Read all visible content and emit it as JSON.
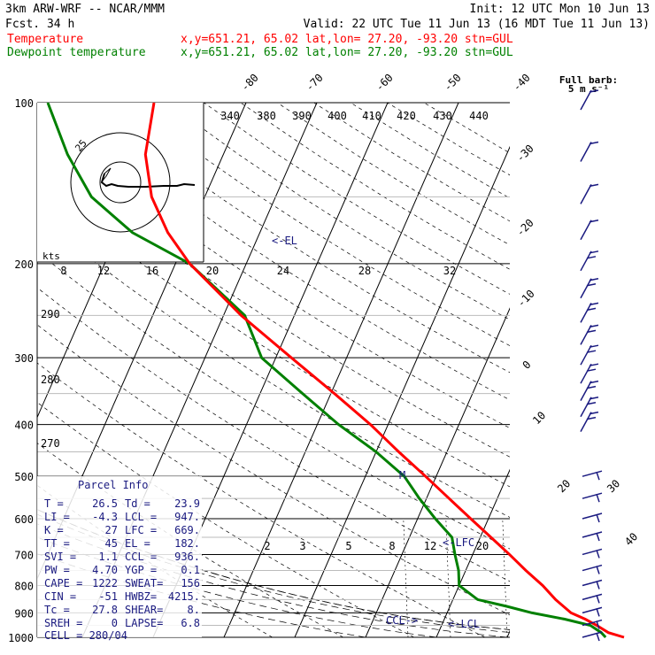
{
  "header": {
    "model": "3km ARW-WRF -- NCAR/MMM",
    "init": "Init: 12 UTC Mon 10 Jun 13",
    "fcst": "Fcst.    34 h",
    "valid": "Valid: 22 UTC Tue 11 Jun 13 (16 MDT Tue 11 Jun 13)",
    "temp_label": "Temperature",
    "dew_label": "Dewpoint temperature",
    "temp_loc": "x,y=651.21, 65.02   lat,lon= 27.20, -93.20  stn=GUL",
    "dew_loc": "x,y=651.21, 65.02   lat,lon= 27.20, -93.20  stn=GUL",
    "full_barb": "Full barb:",
    "full_barb_speed": "5 m s⁻¹",
    "temp_color": "#ff0000",
    "dew_color": "#008000",
    "wind_color": "#1a1a80"
  },
  "chart_data": {
    "type": "line",
    "description_axes": "skew-T log-p",
    "pressure_levels": [
      100,
      200,
      300,
      400,
      500,
      600,
      700,
      800,
      900,
      1000
    ],
    "x_ticks_temp": [
      "-80",
      "-70",
      "-60",
      "-50",
      "-40",
      "-30",
      "-20",
      "-10",
      "0",
      "10",
      "20",
      "30",
      "40"
    ],
    "theta_labels": [
      "340",
      "380",
      "390",
      "400",
      "410",
      "420",
      "430",
      "440"
    ],
    "theta_side_labels": [
      "290",
      "280",
      "270"
    ],
    "mixing_ratio_labels": [
      "2",
      "3",
      "5",
      "8",
      "12",
      "20"
    ],
    "hodograph": {
      "kts_label": "kts",
      "ring_labels": [
        "25"
      ],
      "speed_labels": [
        "8",
        "12",
        "16",
        "20",
        "24",
        "28",
        "32"
      ]
    },
    "series": [
      {
        "name": "Temperature",
        "color": "#ff0000",
        "p": [
          1000,
          980,
          950,
          925,
          900,
          850,
          800,
          750,
          700,
          650,
          600,
          550,
          500,
          450,
          400,
          350,
          300,
          250,
          200,
          175,
          150,
          125,
          100
        ],
        "t": [
          26.5,
          24.0,
          21.9,
          19.9,
          17.5,
          14.5,
          11.8,
          8.5,
          5.2,
          1.5,
          -2.5,
          -6.8,
          -11.5,
          -16.8,
          -22.5,
          -29.5,
          -37.8,
          -47.5,
          -58.0,
          -63.0,
          -67.5,
          -71.0,
          -73.0
        ]
      },
      {
        "name": "Dewpoint temperature",
        "color": "#008000",
        "p": [
          1000,
          980,
          950,
          925,
          900,
          875,
          850,
          800,
          750,
          700,
          650,
          600,
          550,
          500,
          450,
          400,
          350,
          300,
          250,
          200,
          175,
          150,
          125,
          100
        ],
        "t": [
          23.9,
          23.0,
          21.0,
          17.0,
          12.0,
          8.0,
          3.5,
          0.0,
          -1.0,
          -2.5,
          -4.0,
          -7.5,
          -11.0,
          -14.5,
          -20.0,
          -27.0,
          -34.0,
          -42.0,
          -47.0,
          -58.0,
          -68.0,
          -76.0,
          -82.0,
          -88.0
        ]
      }
    ],
    "markers": [
      {
        "label": "<-EL",
        "p": 182
      },
      {
        "label": "<-LFC",
        "p": 669
      },
      {
        "label": "<-LCL",
        "p": 947
      },
      {
        "label": "CCL->",
        "p": 936
      },
      {
        "label": "M",
        "p": 498
      }
    ],
    "wind_barbs": {
      "units": "m s-1",
      "levels": [
        100,
        125,
        150,
        175,
        200,
        225,
        250,
        275,
        300,
        325,
        350,
        375,
        400,
        500,
        550,
        600,
        650,
        700,
        750,
        800,
        850,
        900,
        950,
        1000
      ]
    }
  },
  "parcel_info": {
    "title": "Parcel Info",
    "rows": [
      {
        "k1": "T   =",
        "v1": "26.5",
        "k2": "Td  =",
        "v2": "23.9"
      },
      {
        "k1": "LI  =",
        "v1": "-4.3",
        "k2": "LCL =",
        "v2": "947."
      },
      {
        "k1": "K   =",
        "v1": "27",
        "k2": "LFC =",
        "v2": "669."
      },
      {
        "k1": "TT  =",
        "v1": "45",
        "k2": "EL  =",
        "v2": "182."
      },
      {
        "k1": "SVI =",
        "v1": "1.1",
        "k2": "CCL =",
        "v2": "936."
      },
      {
        "k1": "PW  =",
        "v1": "4.70",
        "k2": "YGP =",
        "v2": "0.1"
      },
      {
        "k1": "CAPE =",
        "v1": "1222",
        "k2": "SWEAT=",
        "v2": "156"
      },
      {
        "k1": "CIN  =",
        "v1": "-51",
        "k2": "HWBZ=",
        "v2": "4215."
      },
      {
        "k1": "Tc   =",
        "v1": "27.8",
        "k2": "SHEAR=",
        "v2": "8."
      },
      {
        "k1": "SREH =",
        "v1": "0",
        "k2": "LAPSE=",
        "v2": "6.8"
      }
    ],
    "cell": "CELL = 280/04"
  }
}
